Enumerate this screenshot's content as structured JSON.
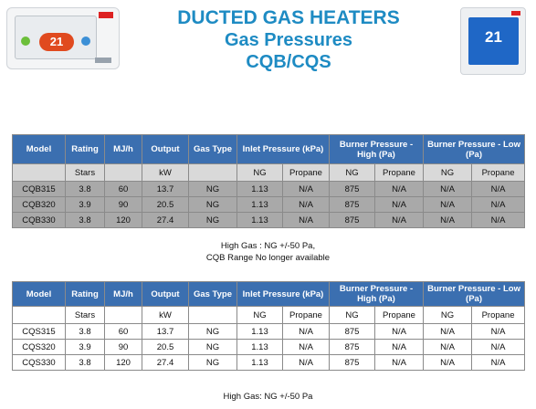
{
  "header": {
    "title_line1": "DUCTED GAS HEATERS",
    "title_line2": "Gas Pressures",
    "title_line3": "CQB/CQS",
    "accent_color": "#1e8bc3"
  },
  "thermostats": {
    "left": {
      "icon": "wall-controller-icon",
      "temperature": "21"
    },
    "right": {
      "icon": "wall-controller-icon",
      "temperature": "21"
    }
  },
  "columns": [
    "Model",
    "Rating",
    "MJ/h",
    "Output",
    "Gas Type",
    "Inlet Pressure (kPa)",
    "Burner Pressure -High (Pa)",
    "Burner Pressure -  Low (Pa)"
  ],
  "units": [
    "",
    "Stars",
    "",
    "kW",
    "",
    "NG",
    "Propane",
    "NG",
    "Propane",
    "NG",
    "Propane"
  ],
  "table_cqb": {
    "rows": [
      [
        "CQB315",
        "3.8",
        "60",
        "13.7",
        "NG",
        "1.13",
        "N/A",
        "875",
        "N/A",
        "N/A",
        "N/A"
      ],
      [
        "CQB320",
        "3.9",
        "90",
        "20.5",
        "NG",
        "1.13",
        "N/A",
        "875",
        "N/A",
        "N/A",
        "N/A"
      ],
      [
        "CQB330",
        "3.8",
        "120",
        "27.4",
        "NG",
        "1.13",
        "N/A",
        "875",
        "N/A",
        "N/A",
        "N/A"
      ]
    ],
    "note_line1": "High   Gas :  NG  +/-50 Pa,",
    "note_line2": "CQB Range No longer available"
  },
  "table_cqs": {
    "rows": [
      [
        "CQS315",
        "3.8",
        "60",
        "13.7",
        "NG",
        "1.13",
        "N/A",
        "875",
        "N/A",
        "N/A",
        "N/A"
      ],
      [
        "CQS320",
        "3.9",
        "90",
        "20.5",
        "NG",
        "1.13",
        "N/A",
        "875",
        "N/A",
        "N/A",
        "N/A"
      ],
      [
        "CQS330",
        "3.8",
        "120",
        "27.4",
        "NG",
        "1.13",
        "N/A",
        "875",
        "N/A",
        "N/A",
        "N/A"
      ]
    ],
    "note_line1": "High   Gas:  NG  +/-50 Pa"
  }
}
